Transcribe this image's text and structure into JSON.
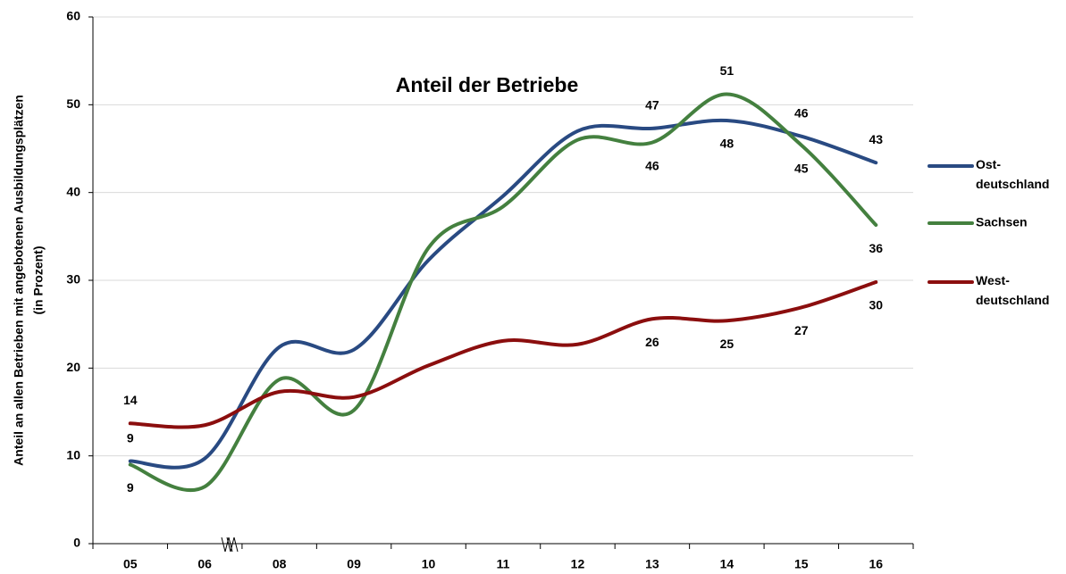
{
  "chart_data": {
    "type": "line",
    "title": "Anteil der Betriebe",
    "ylabel": [
      "Anteil an allen Betrieben mit angebotenen Ausbildungsplätzen",
      "(in Prozent)"
    ],
    "categories": [
      "05",
      "06",
      "08",
      "09",
      "10",
      "11",
      "12",
      "13",
      "14",
      "15",
      "16"
    ],
    "ylim": [
      0,
      60
    ],
    "yticks": [
      0,
      10,
      20,
      30,
      40,
      50,
      60
    ],
    "grid": true,
    "legend": "right",
    "series": [
      {
        "name": "Ost-\ndeutschland",
        "color": "#294a82",
        "values": [
          9.4,
          9.7,
          22.4,
          22.1,
          32.3,
          39.6,
          47.0,
          47.3,
          48.2,
          46.4,
          43.4
        ],
        "value_labels": [
          "9",
          null,
          null,
          null,
          null,
          null,
          null,
          "47",
          "48",
          "46",
          "43"
        ]
      },
      {
        "name": "Sachsen",
        "color": "#44803f",
        "values": [
          9.0,
          6.5,
          18.7,
          15.2,
          33.7,
          38.4,
          46.0,
          45.7,
          51.2,
          45.4,
          36.3
        ],
        "value_labels": [
          "9",
          null,
          null,
          null,
          null,
          null,
          null,
          "46",
          "51",
          "45",
          "36"
        ]
      },
      {
        "name": "West-\ndeutschland",
        "color": "#8b0e0e",
        "values": [
          13.7,
          13.5,
          17.3,
          16.7,
          20.3,
          23.1,
          22.7,
          25.6,
          25.4,
          26.9,
          29.8
        ],
        "value_labels": [
          "14",
          null,
          null,
          null,
          null,
          null,
          null,
          "26",
          "25",
          "27",
          "30"
        ]
      }
    ]
  }
}
